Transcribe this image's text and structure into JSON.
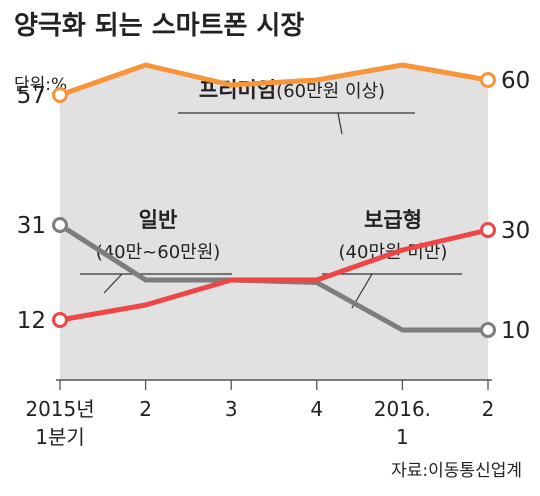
{
  "chart_data": {
    "type": "line",
    "title": "양극화 되는 스마트폰 시장",
    "unit_label": "단위:%",
    "source": "자료:이동통신업계",
    "x": [
      {
        "line1": "2015년",
        "line2": "1분기"
      },
      {
        "line1": "2",
        "line2": ""
      },
      {
        "line1": "3",
        "line2": ""
      },
      {
        "line1": "4",
        "line2": ""
      },
      {
        "line1": "2016.",
        "line2": "1"
      },
      {
        "line1": "2",
        "line2": ""
      }
    ],
    "ylim": [
      0,
      70
    ],
    "grid": false,
    "series": [
      {
        "name": "프리미엄",
        "sub": "(60만원 이상)",
        "color": "#f7953b",
        "values": [
          57,
          63,
          59,
          60,
          63,
          60
        ]
      },
      {
        "name": "일반",
        "sub": "(40만~60만원)",
        "color": "#7d7d7d",
        "values": [
          31,
          20,
          20,
          19.5,
          10,
          10
        ]
      },
      {
        "name": "보급형",
        "sub": "(40만원 미만)",
        "color": "#ee4545",
        "values": [
          12,
          15,
          20,
          20,
          26,
          30
        ]
      }
    ],
    "endpoint_labels": {
      "start": [
        "57",
        "31",
        "12"
      ],
      "end": [
        "60",
        "10",
        "30"
      ]
    }
  }
}
